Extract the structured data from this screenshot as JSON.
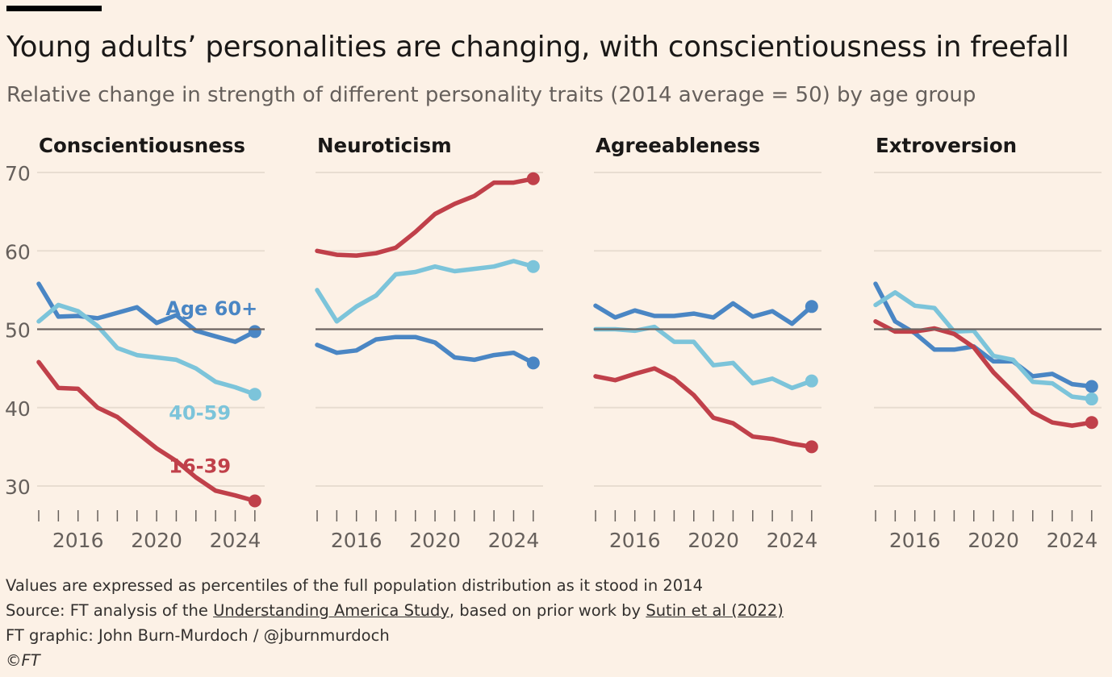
{
  "header": {
    "title": "Young adults’ personalities are changing, with conscientiousness in freefall",
    "subtitle": "Relative change in strength of different personality traits (2014 average = 50) by age group"
  },
  "footer": {
    "note": "Values are expressed as percentiles of the full population distribution as it stood in 2014",
    "source_prefix": "Source: FT analysis of the ",
    "source_link1": "Understanding America Study",
    "source_middle": ", based on prior work by ",
    "source_link2": "Sutin et al (2022)",
    "credit": "FT graphic: John Burn-Murdoch / @jburnmurdoch",
    "copyright": "©FT"
  },
  "colors": {
    "age_60_plus": "#4a86c4",
    "age_40_59": "#7cc4da",
    "age_16_39": "#c0404a",
    "baseline": "#6b6360",
    "grid": "#e8ddd1",
    "axis_text": "#66605c"
  },
  "chart_data": {
    "type": "line",
    "x": [
      2014,
      2015,
      2016,
      2017,
      2018,
      2019,
      2020,
      2021,
      2022,
      2023,
      2024,
      2025
    ],
    "xticks": [
      2016,
      2020,
      2024
    ],
    "yticks": [
      30,
      40,
      50,
      60,
      70
    ],
    "ylim": [
      25,
      71
    ],
    "xlim": [
      2014,
      2025.5
    ],
    "baseline": 50,
    "panels": [
      {
        "title": "Conscientiousness",
        "series": [
          {
            "name": "Age 60+",
            "key": "age_60_plus",
            "values": [
              55.8,
              51.6,
              51.7,
              51.4,
              52.1,
              52.8,
              50.8,
              51.8,
              49.8,
              49.1,
              48.4,
              49.7
            ]
          },
          {
            "name": "40-59",
            "key": "age_40_59",
            "values": [
              51.0,
              53.1,
              52.3,
              50.4,
              47.6,
              46.7,
              46.4,
              46.1,
              45.0,
              43.3,
              42.6,
              41.7
            ]
          },
          {
            "name": "16-39",
            "key": "age_16_39",
            "values": [
              45.8,
              42.5,
              42.4,
              40.0,
              38.8,
              36.8,
              34.8,
              33.2,
              31.1,
              29.4,
              28.8,
              28.1
            ]
          }
        ],
        "labels": [
          {
            "series": "age_60_plus",
            "text": "Age 60+",
            "x": 2022.8,
            "y": 52.7
          },
          {
            "series": "age_40_59",
            "text": "40-59",
            "x": 2022.2,
            "y": 39.4
          },
          {
            "series": "age_16_39",
            "text": "16-39",
            "x": 2022.2,
            "y": 32.6
          }
        ]
      },
      {
        "title": "Neuroticism",
        "series": [
          {
            "name": "Age 60+",
            "key": "age_60_plus",
            "values": [
              48.0,
              47.0,
              47.3,
              48.7,
              49.0,
              49.0,
              48.3,
              46.4,
              46.1,
              46.7,
              47.0,
              45.7
            ]
          },
          {
            "name": "40-59",
            "key": "age_40_59",
            "values": [
              55.0,
              51.0,
              52.9,
              54.3,
              57.0,
              57.3,
              58.0,
              57.4,
              57.7,
              58.0,
              58.7,
              58.0
            ]
          },
          {
            "name": "16-39",
            "key": "age_16_39",
            "values": [
              60.0,
              59.5,
              59.4,
              59.7,
              60.4,
              62.4,
              64.7,
              66.0,
              67.0,
              68.7,
              68.7,
              69.2
            ]
          }
        ],
        "labels": []
      },
      {
        "title": "Agreeableness",
        "series": [
          {
            "name": "Age 60+",
            "key": "age_60_plus",
            "values": [
              53.0,
              51.5,
              52.4,
              51.7,
              51.7,
              52.0,
              51.5,
              53.3,
              51.6,
              52.3,
              50.7,
              52.9
            ]
          },
          {
            "name": "40-59",
            "key": "age_40_59",
            "values": [
              50.0,
              50.0,
              49.8,
              50.3,
              48.4,
              48.4,
              45.4,
              45.7,
              43.1,
              43.7,
              42.5,
              43.4
            ]
          },
          {
            "name": "16-39",
            "key": "age_16_39",
            "values": [
              44.0,
              43.5,
              44.3,
              45.0,
              43.7,
              41.6,
              38.7,
              38.0,
              36.3,
              36.0,
              35.4,
              35.0
            ]
          }
        ],
        "labels": []
      },
      {
        "title": "Extroversion",
        "series": [
          {
            "name": "Age 60+",
            "key": "age_60_plus",
            "values": [
              55.8,
              51.0,
              49.5,
              47.4,
              47.4,
              47.8,
              45.9,
              45.9,
              44.0,
              44.3,
              43.0,
              42.7
            ]
          },
          {
            "name": "40-59",
            "key": "age_40_59",
            "values": [
              53.1,
              54.7,
              53.0,
              52.7,
              49.7,
              49.8,
              46.6,
              46.1,
              43.3,
              43.1,
              41.4,
              41.1
            ]
          },
          {
            "name": "16-39",
            "key": "age_16_39",
            "values": [
              51.0,
              49.7,
              49.7,
              50.1,
              49.4,
              47.7,
              44.5,
              42.0,
              39.4,
              38.1,
              37.7,
              38.1
            ]
          }
        ],
        "labels": []
      }
    ]
  }
}
